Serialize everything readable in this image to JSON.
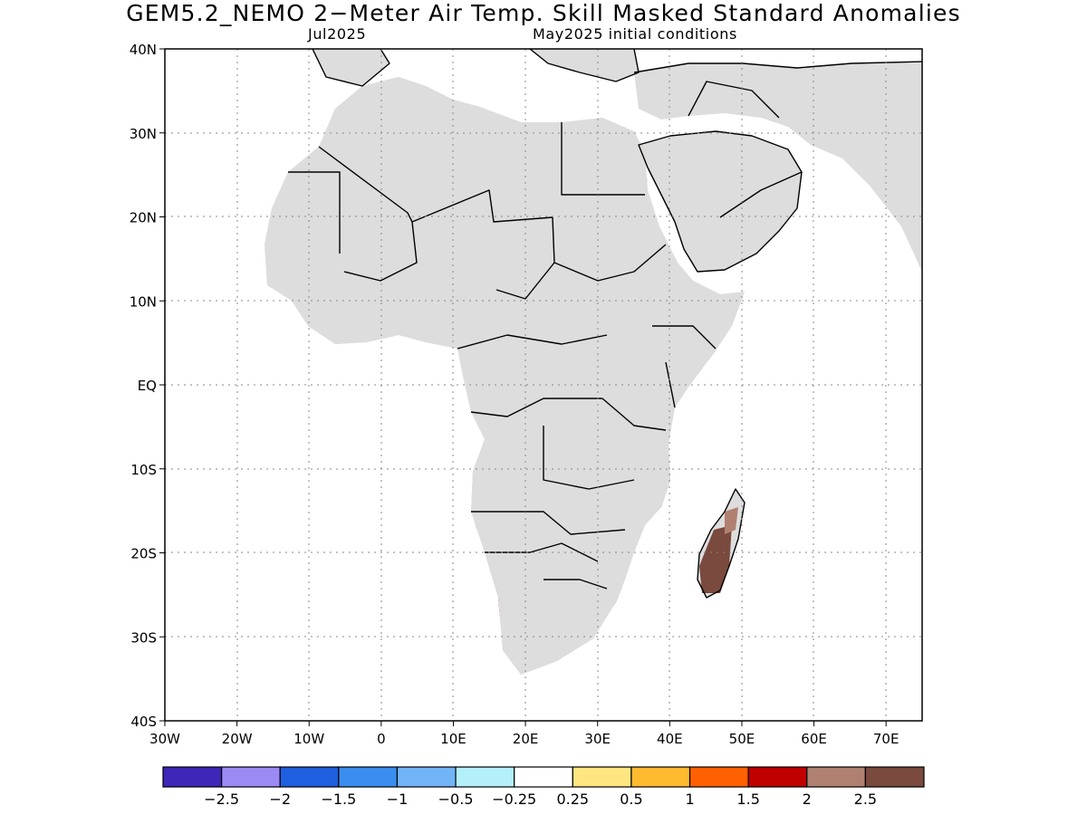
{
  "title": "GEM5.2_NEMO 2−Meter Air Temp. Skill Masked Standard Anomalies",
  "subtitle_left": "Jul2025",
  "subtitle_right": "May2025 initial conditions",
  "map": {
    "lon_range": [
      -30,
      75
    ],
    "lat_range": [
      -40,
      40
    ],
    "lat_ticks": [
      {
        "value": 40,
        "label": "40N"
      },
      {
        "value": 30,
        "label": "30N"
      },
      {
        "value": 20,
        "label": "20N"
      },
      {
        "value": 10,
        "label": "10N"
      },
      {
        "value": 0,
        "label": "EQ"
      },
      {
        "value": -10,
        "label": "10S"
      },
      {
        "value": -20,
        "label": "20S"
      },
      {
        "value": -30,
        "label": "30S"
      },
      {
        "value": -40,
        "label": "40S"
      }
    ],
    "lon_ticks": [
      {
        "value": -30,
        "label": "30W"
      },
      {
        "value": -20,
        "label": "20W"
      },
      {
        "value": -10,
        "label": "10W"
      },
      {
        "value": 0,
        "label": "0"
      },
      {
        "value": 10,
        "label": "10E"
      },
      {
        "value": 20,
        "label": "20E"
      },
      {
        "value": 30,
        "label": "30E"
      },
      {
        "value": 40,
        "label": "40E"
      },
      {
        "value": 50,
        "label": "50E"
      },
      {
        "value": 60,
        "label": "60E"
      },
      {
        "value": 70,
        "label": "70E"
      }
    ],
    "land_color": "#dddddd",
    "grid": true
  },
  "colorbar": {
    "colors": [
      "#3d26b8",
      "#9b8af4",
      "#1f5fe0",
      "#3a8ef0",
      "#72b4f8",
      "#b4f0fa",
      "#ffffff",
      "#ffe680",
      "#ffba30",
      "#ff6000",
      "#c00000",
      "#b08070",
      "#7a4a3e"
    ],
    "labels": [
      "−2.5",
      "−2",
      "−1.5",
      "−1",
      "−0.5",
      "−0.25",
      "0.25",
      "0.5",
      "1",
      "1.5",
      "2",
      "2.5"
    ]
  }
}
